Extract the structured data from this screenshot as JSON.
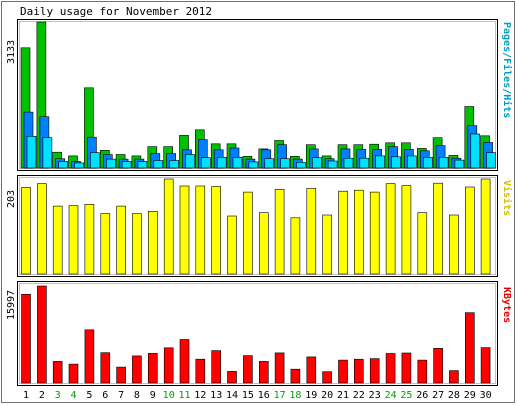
{
  "chart_data": [
    {
      "type": "bar",
      "title": "Daily usage for November 2012",
      "categories": [
        "1",
        "2",
        "3",
        "4",
        "5",
        "6",
        "7",
        "8",
        "9",
        "10",
        "11",
        "12",
        "13",
        "14",
        "15",
        "16",
        "17",
        "18",
        "19",
        "20",
        "21",
        "22",
        "23",
        "24",
        "25",
        "26",
        "27",
        "28",
        "29",
        "30"
      ],
      "weekend_days": [
        "3",
        "4",
        "10",
        "11",
        "17",
        "18",
        "24",
        "25"
      ],
      "ylabel": "Pages/Files/Hits",
      "ymax_label": "3133",
      "ylim": [
        0,
        3133
      ],
      "series": [
        {
          "name": "Hits",
          "color": "#00c000",
          "values": [
            2580,
            3133,
            340,
            260,
            1720,
            380,
            290,
            260,
            460,
            460,
            700,
            820,
            520,
            520,
            250,
            410,
            590,
            250,
            500,
            260,
            500,
            500,
            510,
            540,
            540,
            420,
            650,
            270,
            1320,
            690
          ]
        },
        {
          "name": "Files",
          "color": "#0080ff",
          "values": [
            1200,
            1100,
            200,
            140,
            660,
            290,
            190,
            190,
            310,
            310,
            390,
            610,
            390,
            430,
            190,
            390,
            500,
            190,
            410,
            200,
            410,
            400,
            400,
            460,
            400,
            370,
            480,
            210,
            910,
            550
          ]
        },
        {
          "name": "Pages",
          "color": "#00e0ff",
          "values": [
            680,
            650,
            140,
            110,
            330,
            190,
            140,
            140,
            160,
            160,
            290,
            220,
            230,
            230,
            130,
            200,
            200,
            120,
            220,
            150,
            210,
            210,
            260,
            240,
            260,
            230,
            230,
            170,
            730,
            330
          ]
        }
      ]
    },
    {
      "type": "bar",
      "categories": [
        "1",
        "2",
        "3",
        "4",
        "5",
        "6",
        "7",
        "8",
        "9",
        "10",
        "11",
        "12",
        "13",
        "14",
        "15",
        "16",
        "17",
        "18",
        "19",
        "20",
        "21",
        "22",
        "23",
        "24",
        "25",
        "26",
        "27",
        "28",
        "29",
        "30"
      ],
      "ylabel": "Visits",
      "ymax_label": "203",
      "ylim": [
        0,
        203
      ],
      "series": [
        {
          "name": "Visits",
          "color": "#ffff00",
          "values": [
            185,
            193,
            145,
            146,
            149,
            129,
            145,
            129,
            134,
            203,
            188,
            188,
            187,
            124,
            175,
            131,
            181,
            120,
            183,
            126,
            177,
            179,
            175,
            193,
            189,
            131,
            194,
            126,
            186,
            203
          ]
        }
      ]
    },
    {
      "type": "bar",
      "categories": [
        "1",
        "2",
        "3",
        "4",
        "5",
        "6",
        "7",
        "8",
        "9",
        "10",
        "11",
        "12",
        "13",
        "14",
        "15",
        "16",
        "17",
        "18",
        "19",
        "20",
        "21",
        "22",
        "23",
        "24",
        "25",
        "26",
        "27",
        "28",
        "29",
        "30"
      ],
      "ylabel": "KBytes",
      "ymax_label": "15997",
      "ylim": [
        0,
        15997
      ],
      "series": [
        {
          "name": "KBytes",
          "color": "#ff0000",
          "values": [
            14620,
            15997,
            3560,
            3120,
            8780,
            5000,
            2620,
            4470,
            4880,
            5800,
            7180,
            3930,
            5340,
            1910,
            4520,
            3560,
            4970,
            2270,
            4300,
            1860,
            3770,
            3930,
            4020,
            4860,
            4940,
            3770,
            5730,
            2050,
            11590,
            5840
          ]
        }
      ]
    }
  ]
}
